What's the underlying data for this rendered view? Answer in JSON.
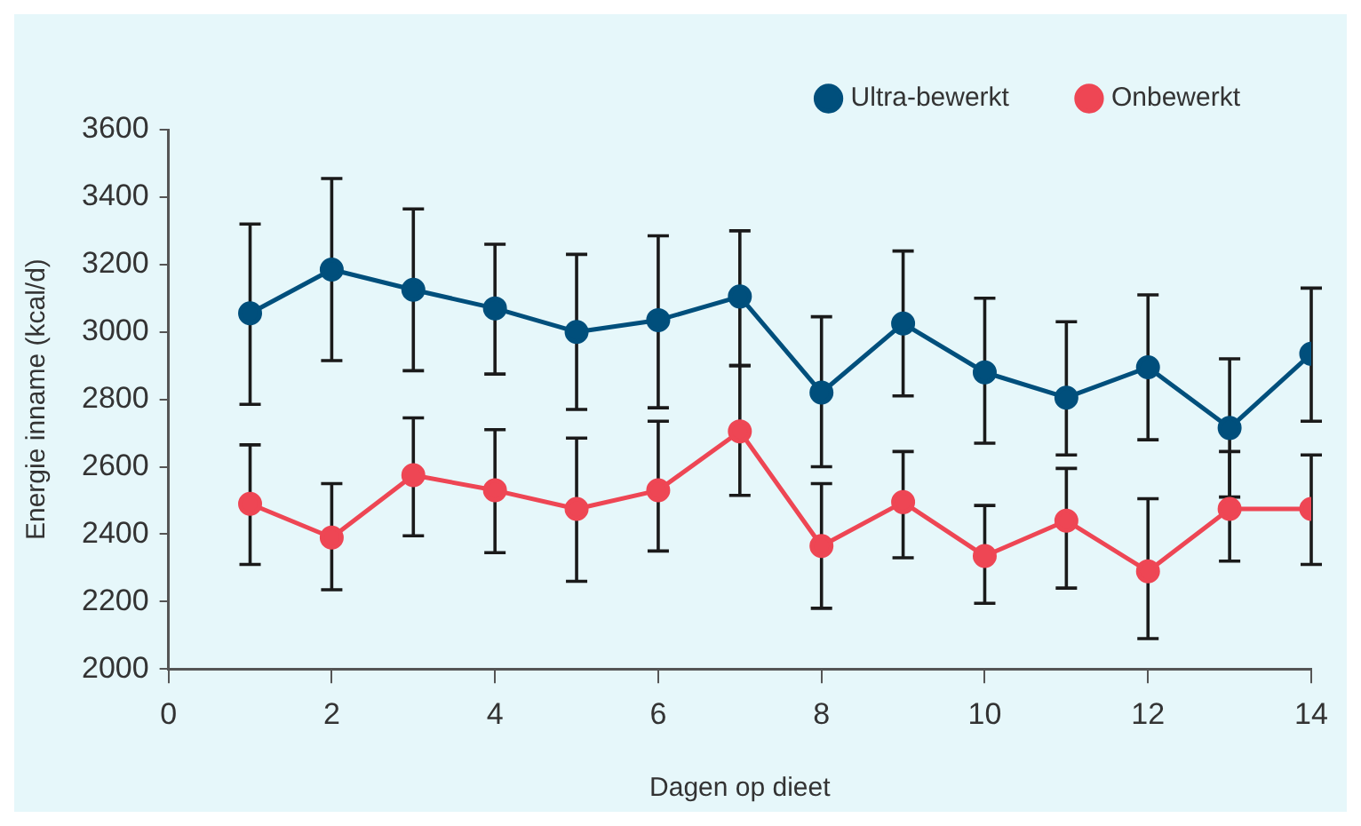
{
  "chart_data": {
    "type": "line",
    "xlabel": "Dagen op dieet",
    "ylabel": "Energie inname (kcal/d)",
    "x": [
      1,
      2,
      3,
      4,
      5,
      6,
      7,
      8,
      9,
      10,
      11,
      12,
      13,
      14
    ],
    "xlim": [
      0,
      14
    ],
    "xticks": [
      0,
      2,
      4,
      6,
      8,
      10,
      12,
      14
    ],
    "ylim": [
      2000,
      3600
    ],
    "yticks": [
      2000,
      2200,
      2400,
      2600,
      2800,
      3000,
      3200,
      3400,
      3600
    ],
    "series": [
      {
        "name": "Ultra-bewerkt",
        "color": "#004f7c",
        "values": [
          3055,
          3185,
          3125,
          3070,
          3000,
          3035,
          3105,
          2820,
          3025,
          2880,
          2805,
          2895,
          2715,
          2935
        ],
        "errors": [
          [
            2785,
            3320
          ],
          [
            2915,
            3455
          ],
          [
            2885,
            3365
          ],
          [
            2875,
            3260
          ],
          [
            2770,
            3230
          ],
          [
            2775,
            3285
          ],
          [
            2900,
            3300
          ],
          [
            2600,
            3045
          ],
          [
            2810,
            3240
          ],
          [
            2670,
            3100
          ],
          [
            2635,
            3030
          ],
          [
            2680,
            3110
          ],
          [
            2510,
            2920
          ],
          [
            2735,
            3130
          ]
        ]
      },
      {
        "name": "Onbewerkt",
        "color": "#ee4654",
        "values": [
          2490,
          2390,
          2575,
          2530,
          2475,
          2530,
          2705,
          2365,
          2495,
          2335,
          2440,
          2290,
          2475,
          2475
        ],
        "errors": [
          [
            2310,
            2665
          ],
          [
            2235,
            2550
          ],
          [
            2395,
            2745
          ],
          [
            2345,
            2710
          ],
          [
            2260,
            2685
          ],
          [
            2350,
            2735
          ],
          [
            2515,
            2900
          ],
          [
            2180,
            2550
          ],
          [
            2330,
            2645
          ],
          [
            2195,
            2485
          ],
          [
            2240,
            2595
          ],
          [
            2090,
            2505
          ],
          [
            2320,
            2645
          ],
          [
            2310,
            2635
          ]
        ]
      }
    ],
    "marker": "circle",
    "line_style": "solid",
    "grid": false,
    "legend": "top right"
  }
}
